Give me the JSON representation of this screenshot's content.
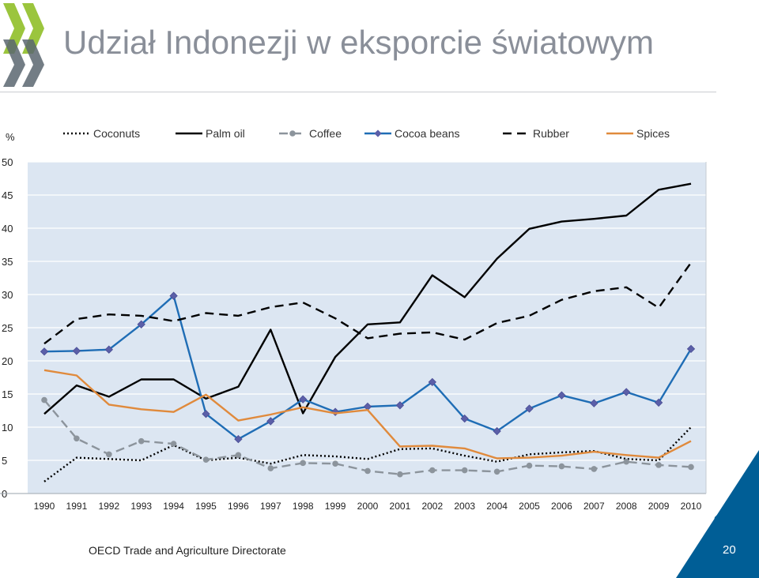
{
  "slide": {
    "title": "Udział Indonezji w eksporcie światowym",
    "footer": "OECD Trade and Agriculture Directorate",
    "page_number": "20"
  },
  "colors": {
    "logo_light": "#9bc53d",
    "logo_dark": "#5a6670",
    "corner_blue": "#005e96",
    "plot_bg": "#dce6f2"
  },
  "chart_data": {
    "type": "line",
    "ylabel": "%",
    "ylim": [
      0,
      50
    ],
    "yticks": [
      0,
      5,
      10,
      15,
      20,
      25,
      30,
      35,
      40,
      45,
      50
    ],
    "x": [
      "1990",
      "1991",
      "1992",
      "1993",
      "1994",
      "1995",
      "1996",
      "1997",
      "1998",
      "1999",
      "2000",
      "2001",
      "2002",
      "2003",
      "2004",
      "2005",
      "2006",
      "2007",
      "2008",
      "2009",
      "2010"
    ],
    "legend_position": "top",
    "grid": true,
    "series": [
      {
        "name": "Coconuts",
        "color": "#000000",
        "dash": "2,3",
        "marker": "none",
        "values": [
          1.8,
          5.4,
          5.2,
          5.0,
          7.3,
          5.0,
          5.4,
          4.5,
          5.8,
          5.6,
          5.2,
          6.7,
          6.8,
          5.7,
          4.8,
          5.9,
          6.2,
          6.4,
          5.2,
          5.0,
          10.0
        ]
      },
      {
        "name": "Palm oil",
        "color": "#000000",
        "dash": "",
        "marker": "none",
        "values": [
          12.0,
          16.3,
          14.6,
          17.2,
          17.2,
          14.3,
          16.1,
          24.7,
          12.1,
          20.6,
          25.5,
          25.8,
          32.9,
          29.6,
          35.4,
          39.9,
          41.0,
          41.4,
          41.9,
          45.8,
          46.7
        ]
      },
      {
        "name": "Coffee",
        "color": "#8c949c",
        "dash": "11,6",
        "marker": "circle",
        "values": [
          14.1,
          8.3,
          5.9,
          7.9,
          7.5,
          5.1,
          5.8,
          3.8,
          4.6,
          4.5,
          3.4,
          2.9,
          3.5,
          3.5,
          3.3,
          4.2,
          4.1,
          3.7,
          4.8,
          4.3,
          4.0
        ]
      },
      {
        "name": "Cocoa beans",
        "color": "#1f6db5",
        "dash": "",
        "marker": "diamond",
        "values": [
          21.4,
          21.5,
          21.7,
          25.5,
          29.8,
          12.0,
          8.2,
          10.9,
          14.2,
          12.3,
          13.1,
          13.3,
          16.8,
          11.3,
          9.4,
          12.8,
          14.8,
          13.6,
          15.3,
          13.7,
          21.8
        ]
      },
      {
        "name": "Rubber",
        "color": "#000000",
        "dash": "11,7",
        "marker": "none",
        "values": [
          22.6,
          26.3,
          27.0,
          26.8,
          26.0,
          27.2,
          26.8,
          28.1,
          28.8,
          26.4,
          23.4,
          24.1,
          24.3,
          23.2,
          25.7,
          26.8,
          29.2,
          30.5,
          31.1,
          28.0,
          34.8
        ]
      },
      {
        "name": "Spices",
        "color": "#e08a3c",
        "dash": "",
        "marker": "none",
        "values": [
          18.6,
          17.8,
          13.4,
          12.7,
          12.3,
          14.9,
          11.0,
          11.9,
          13.0,
          12.1,
          12.6,
          7.1,
          7.2,
          6.8,
          5.3,
          5.4,
          5.7,
          6.3,
          5.8,
          5.4,
          7.9
        ]
      }
    ]
  }
}
